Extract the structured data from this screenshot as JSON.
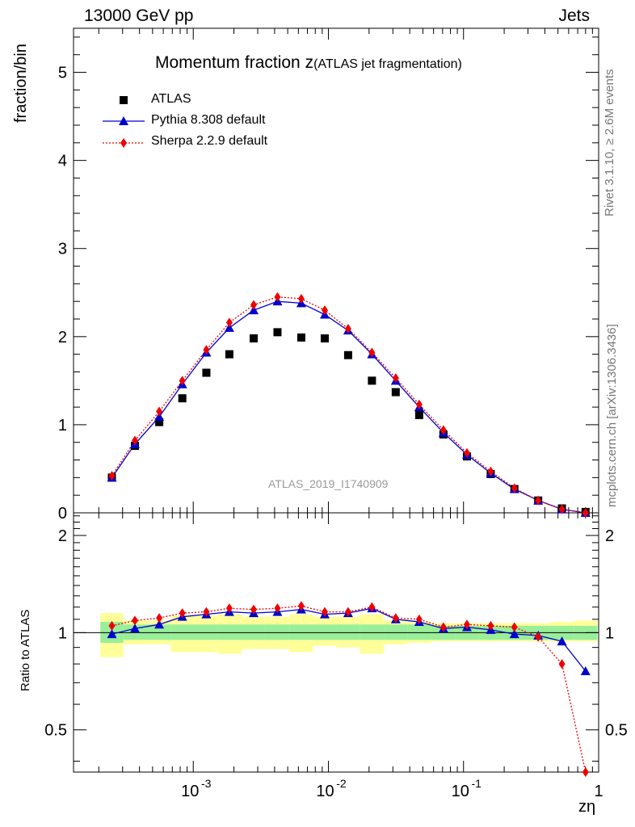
{
  "header": {
    "energy_label": "13000 GeV pp",
    "process_label": "Jets",
    "rivet_label": "Rivet 3.1.10, ≥ 2.6M events",
    "mcplots_label": "mcplots.cern.ch [arXiv:1306.3436]",
    "analysis_label": "ATLAS_2019_I1740909"
  },
  "chart_data": {
    "type": "scatter",
    "title_main": "Momentum fraction z",
    "title_sub": "(ATLAS jet fragmentation)",
    "xlabel": "zη",
    "ylabel_top": "fraction/bin",
    "ylabel_bottom": "Ratio to ATLAS",
    "x_scale": "log",
    "xlim": [
      0.00013,
      1.0
    ],
    "ylim_top": [
      0,
      5.5
    ],
    "ylim_bottom": [
      0.37,
      2.35
    ],
    "y_ticks_top": [
      "0",
      "1",
      "2",
      "3",
      "4",
      "5"
    ],
    "y_ticks_bottom": [
      "0.5",
      "1",
      "2"
    ],
    "x_ticks": [
      "10",
      "10",
      "10",
      "1"
    ],
    "x_tick_exponents": [
      "-3",
      "-2",
      "-1",
      ""
    ],
    "legend_placement": "top-left",
    "x": [
      0.00025,
      0.00037,
      0.00056,
      0.00083,
      0.00125,
      0.00185,
      0.0028,
      0.0042,
      0.0063,
      0.0094,
      0.014,
      0.021,
      0.0315,
      0.047,
      0.071,
      0.106,
      0.159,
      0.238,
      0.357,
      0.535,
      0.8
    ],
    "series": [
      {
        "name": "ATLAS",
        "color": "#000000",
        "marker": "square",
        "values": [
          0.4,
          0.76,
          1.03,
          1.3,
          1.59,
          1.8,
          1.98,
          2.05,
          1.99,
          1.98,
          1.79,
          1.5,
          1.37,
          1.11,
          0.89,
          0.64,
          0.44,
          0.27,
          0.14,
          0.05,
          0.01
        ]
      },
      {
        "name": "Pythia 8.308 default",
        "color": "#0000cc",
        "marker": "triangle",
        "values": [
          0.4,
          0.78,
          1.09,
          1.46,
          1.82,
          2.1,
          2.3,
          2.4,
          2.38,
          2.25,
          2.07,
          1.8,
          1.5,
          1.2,
          0.91,
          0.66,
          0.45,
          0.27,
          0.14,
          0.04,
          0.0
        ]
      },
      {
        "name": "Sherpa 2.2.9 default",
        "color": "#ee0000",
        "marker": "diamond",
        "values": [
          0.42,
          0.82,
          1.15,
          1.5,
          1.85,
          2.16,
          2.36,
          2.45,
          2.43,
          2.3,
          2.09,
          1.82,
          1.53,
          1.23,
          0.94,
          0.68,
          0.47,
          0.28,
          0.14,
          0.04,
          0.0
        ]
      }
    ],
    "ratio": {
      "pythia": [
        0.99,
        1.03,
        1.06,
        1.12,
        1.14,
        1.16,
        1.15,
        1.16,
        1.18,
        1.14,
        1.15,
        1.19,
        1.1,
        1.08,
        1.03,
        1.04,
        1.02,
        0.99,
        0.98,
        0.94,
        0.76
      ],
      "sherpa": [
        1.05,
        1.09,
        1.11,
        1.15,
        1.16,
        1.19,
        1.18,
        1.19,
        1.21,
        1.16,
        1.16,
        1.2,
        1.11,
        1.1,
        1.04,
        1.06,
        1.05,
        1.04,
        0.97,
        0.8,
        0.37
      ],
      "band_inner_low": [
        0.93,
        0.95,
        0.95,
        0.95,
        0.95,
        0.95,
        0.95,
        0.95,
        0.95,
        0.95,
        0.95,
        0.95,
        0.95,
        0.95,
        0.95,
        0.95,
        0.95,
        0.95,
        0.95,
        0.95,
        0.95
      ],
      "band_inner_high": [
        1.08,
        1.06,
        1.06,
        1.06,
        1.06,
        1.06,
        1.06,
        1.06,
        1.06,
        1.06,
        1.06,
        1.06,
        1.06,
        1.06,
        1.05,
        1.05,
        1.05,
        1.05,
        1.05,
        1.05,
        1.05
      ],
      "band_outer_low": [
        0.84,
        0.92,
        0.92,
        0.87,
        0.87,
        0.86,
        0.89,
        0.89,
        0.87,
        0.91,
        0.9,
        0.86,
        0.92,
        0.93,
        0.94,
        0.94,
        0.94,
        0.94,
        0.94,
        0.94,
        0.94
      ],
      "band_outer_high": [
        1.15,
        1.09,
        1.09,
        1.13,
        1.13,
        1.14,
        1.12,
        1.12,
        1.14,
        1.12,
        1.12,
        1.14,
        1.09,
        1.08,
        1.07,
        1.07,
        1.07,
        1.07,
        1.07,
        1.08,
        1.09
      ]
    },
    "band_colors": {
      "inner": "#99ee99",
      "outer": "#ffff99"
    }
  }
}
